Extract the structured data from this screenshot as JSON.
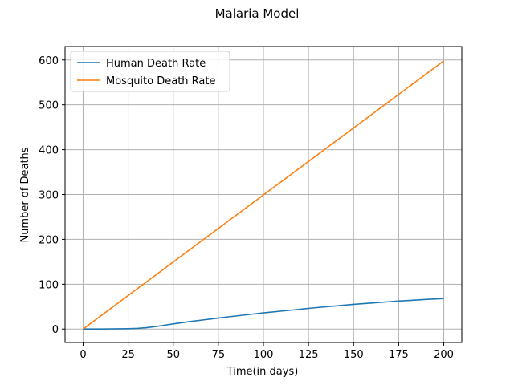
{
  "chart_data": {
    "type": "line",
    "title": "Malaria Model",
    "xlabel": "Time(in days)",
    "ylabel": "Number of Deaths",
    "xlim": [
      -10,
      210
    ],
    "ylim": [
      -30,
      630
    ],
    "xticks": [
      0,
      25,
      50,
      75,
      100,
      125,
      150,
      175,
      200
    ],
    "yticks": [
      0,
      100,
      200,
      300,
      400,
      500,
      600
    ],
    "grid": true,
    "legend_placement": "upper-left",
    "series": [
      {
        "name": "Human Death Rate",
        "color": "#1f77b4",
        "x": [
          0,
          10,
          20,
          25,
          30,
          35,
          40,
          45,
          50,
          60,
          70,
          75,
          80,
          90,
          100,
          110,
          120,
          125,
          130,
          140,
          150,
          160,
          170,
          175,
          180,
          190,
          200
        ],
        "y": [
          0,
          0.1,
          0.5,
          0.8,
          1.5,
          3,
          5.5,
          8.5,
          11.5,
          17,
          22,
          24.5,
          27,
          31.5,
          36,
          40,
          44,
          46,
          48,
          51.5,
          55,
          58,
          61,
          62.5,
          63.5,
          66,
          68
        ]
      },
      {
        "name": "Mosquito Death Rate",
        "color": "#ff7f0e",
        "x": [
          0,
          200
        ],
        "y": [
          0,
          598
        ]
      }
    ]
  }
}
